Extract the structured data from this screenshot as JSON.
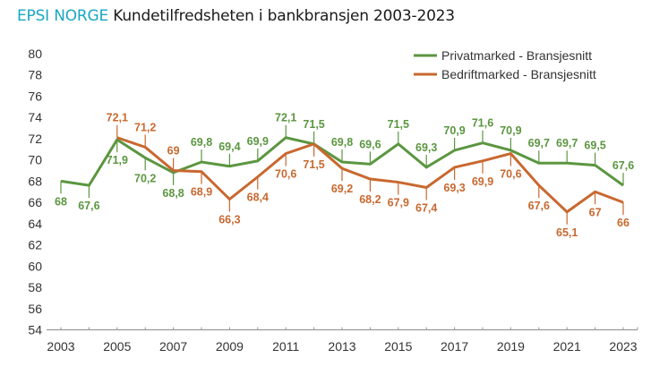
{
  "title": {
    "brand": "EPSI NORGE",
    "text": "Kundetilfredsheten i bankbransjen 2003-2023"
  },
  "colors": {
    "brand": "#1aa7c4",
    "privat": "#5b9640",
    "bedrift": "#c8682f",
    "axis": "#999999"
  },
  "chart_data": {
    "type": "line",
    "title": "EPSI NORGE Kundetilfredsheten i bankbransjen 2003-2023",
    "xlabel": "",
    "ylabel": "",
    "x": [
      2003,
      2004,
      2005,
      2006,
      2007,
      2008,
      2009,
      2010,
      2011,
      2012,
      2013,
      2014,
      2015,
      2016,
      2017,
      2018,
      2019,
      2020,
      2021,
      2022,
      2023
    ],
    "x_tick_labels": [
      "2003",
      "2005",
      "2007",
      "2009",
      "2011",
      "2013",
      "2015",
      "2017",
      "2019",
      "2021",
      "2023"
    ],
    "y_tick_labels": [
      "80",
      "78",
      "76",
      "74",
      "72",
      "70",
      "68",
      "66",
      "64",
      "62",
      "60",
      "58",
      "56",
      "54"
    ],
    "ylim": [
      54,
      80
    ],
    "grid": false,
    "legend_position": "top-right",
    "series": [
      {
        "name": "Privatmarked - Bransjesnitt",
        "color": "#5b9640",
        "values": [
          68,
          67.6,
          71.9,
          70.2,
          68.8,
          69.8,
          69.4,
          69.9,
          72.1,
          71.5,
          69.8,
          69.6,
          71.5,
          69.3,
          70.9,
          71.6,
          70.9,
          69.7,
          69.7,
          69.5,
          67.6
        ],
        "labels": [
          "68",
          "67,6",
          "71,9",
          "70,2",
          "68,8",
          "69,8",
          "69,4",
          "69,9",
          "72,1",
          "71,5",
          "69,8",
          "69,6",
          "71,5",
          "69,3",
          "70,9",
          "71,6",
          "70,9",
          "69,7",
          "69,7",
          "69,5",
          "67,6"
        ],
        "label_side": [
          "below",
          "below",
          "below",
          "below",
          "below",
          "above",
          "above",
          "above",
          "above",
          "above",
          "above",
          "above",
          "above",
          "above",
          "above",
          "above",
          "above",
          "above",
          "above",
          "above",
          "above"
        ]
      },
      {
        "name": "Bedriftmarked - Bransjesnitt",
        "color": "#c8682f",
        "values": [
          null,
          null,
          72.1,
          71.2,
          69,
          68.9,
          66.3,
          68.4,
          70.6,
          71.5,
          69.2,
          68.2,
          67.9,
          67.4,
          69.3,
          69.9,
          70.6,
          67.6,
          65.1,
          67,
          66
        ],
        "labels": [
          null,
          null,
          "72,1",
          "71,2",
          "69",
          "68,9",
          "66,3",
          "68,4",
          "70,6",
          "71,5",
          "69,2",
          "68,2",
          "67,9",
          "67,4",
          "69,3",
          "69,9",
          "70,6",
          "67,6",
          "65,1",
          "67",
          "66"
        ],
        "label_side": [
          null,
          null,
          "above",
          "above",
          "above",
          "below",
          "below",
          "below",
          "below",
          "below",
          "below",
          "below",
          "below",
          "below",
          "below",
          "below",
          "below",
          "below",
          "below",
          "below",
          "below"
        ]
      }
    ]
  }
}
